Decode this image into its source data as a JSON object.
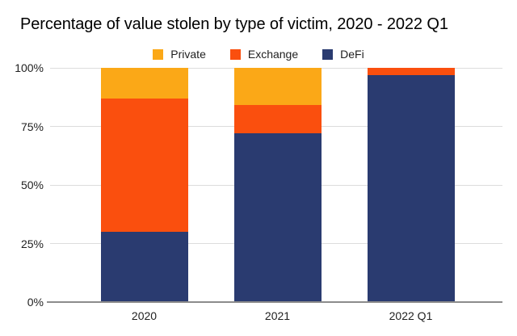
{
  "title": "Percentage of value stolen by type of victim, 2020 - 2022 Q1",
  "chart_data": {
    "type": "bar",
    "stacked": true,
    "title": "Percentage of value stolen by type of victim, 2020 - 2022 Q1",
    "categories": [
      "2020",
      "2021",
      "2022 Q1"
    ],
    "series": [
      {
        "name": "Private",
        "color": "#fba817",
        "values": [
          13,
          16,
          0
        ]
      },
      {
        "name": "Exchange",
        "color": "#fa4f0e",
        "values": [
          57,
          12,
          3
        ]
      },
      {
        "name": "DeFi",
        "color": "#2a3b70",
        "values": [
          30,
          72,
          97
        ]
      }
    ],
    "xlabel": "",
    "ylabel": "",
    "ylim": [
      0,
      100
    ],
    "y_ticks": [
      0,
      25,
      50,
      75,
      100
    ],
    "y_tick_labels": [
      "0%",
      "25%",
      "50%",
      "75%",
      "100%"
    ],
    "grid": true,
    "legend_position": "top"
  },
  "colors": {
    "background": "#ffffff",
    "gridline": "#dcdcdc",
    "axis_line": "#8c8c8c",
    "text": "#1f1f1f"
  }
}
